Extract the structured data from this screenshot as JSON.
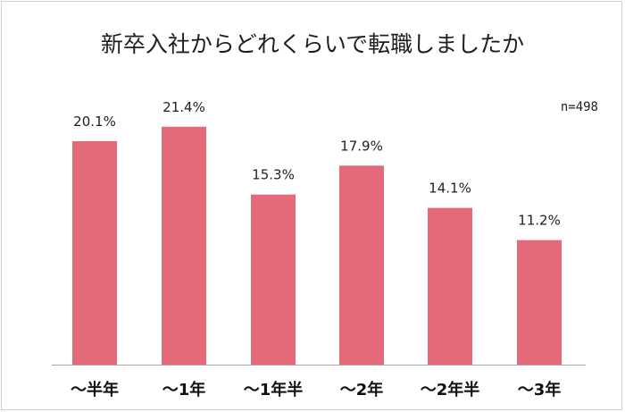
{
  "chart_data": {
    "type": "bar",
    "title": "新卒入社からどれくらいで転職しましたか",
    "sample_size": "n=498",
    "categories": [
      "～半年",
      "～1年",
      "～1年半",
      "～2年",
      "～2年半",
      "～3年"
    ],
    "values": [
      20.1,
      21.4,
      15.3,
      17.9,
      14.1,
      11.2
    ],
    "value_labels": [
      "20.1%",
      "21.4%",
      "15.3%",
      "17.9%",
      "14.1%",
      "11.2%"
    ],
    "xlabel": "",
    "ylabel": "",
    "ylim": [
      0,
      25
    ],
    "grid": false,
    "legend": "none",
    "bar_color": "#e46a7a",
    "axis_color": "#a6a6a6"
  }
}
